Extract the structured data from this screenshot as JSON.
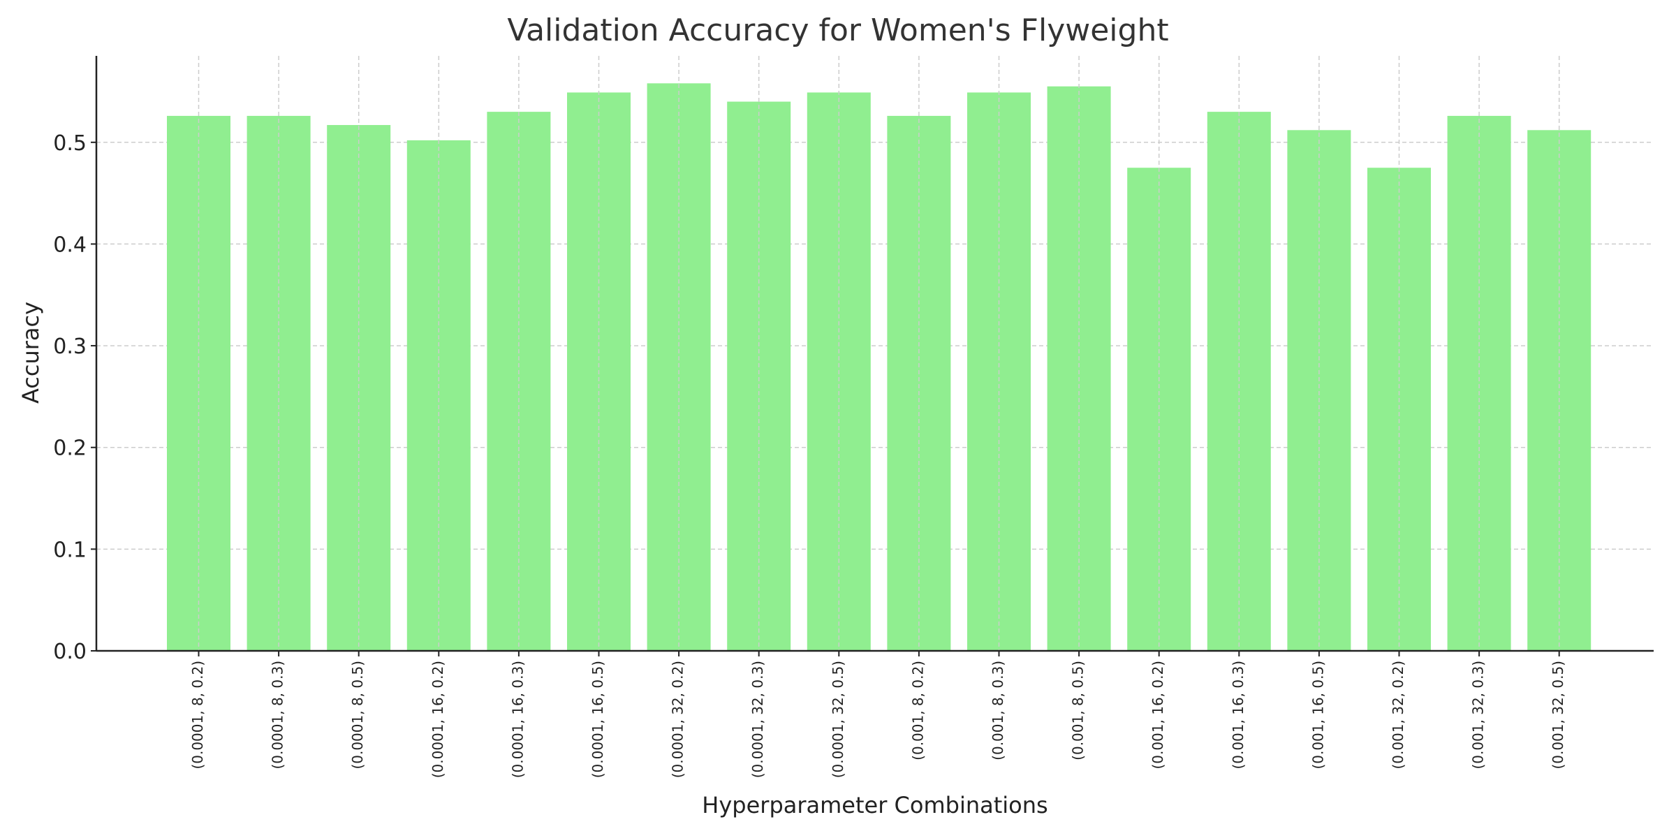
{
  "chart_data": {
    "type": "bar",
    "title": "Validation Accuracy for Women's Flyweight",
    "xlabel": "Hyperparameter Combinations",
    "ylabel": "Accuracy",
    "ylim": [
      0,
      0.585
    ],
    "yticks": [
      0.0,
      0.1,
      0.2,
      0.3,
      0.4,
      0.5
    ],
    "ytick_labels": [
      "0.0",
      "0.1",
      "0.2",
      "0.3",
      "0.4",
      "0.5"
    ],
    "grid": true,
    "bar_color": "#90ee90",
    "grid_color": "#cccccc",
    "categories": [
      "(0.0001, 8, 0.2)",
      "(0.0001, 8, 0.3)",
      "(0.0001, 8, 0.5)",
      "(0.0001, 16, 0.2)",
      "(0.0001, 16, 0.3)",
      "(0.0001, 16, 0.5)",
      "(0.0001, 32, 0.2)",
      "(0.0001, 32, 0.3)",
      "(0.0001, 32, 0.5)",
      "(0.001, 8, 0.2)",
      "(0.001, 8, 0.3)",
      "(0.001, 8, 0.5)",
      "(0.001, 16, 0.2)",
      "(0.001, 16, 0.3)",
      "(0.001, 16, 0.5)",
      "(0.001, 32, 0.2)",
      "(0.001, 32, 0.3)",
      "(0.001, 32, 0.5)"
    ],
    "values": [
      0.526,
      0.526,
      0.517,
      0.502,
      0.53,
      0.549,
      0.558,
      0.54,
      0.549,
      0.526,
      0.549,
      0.555,
      0.475,
      0.53,
      0.512,
      0.475,
      0.526,
      0.512
    ]
  }
}
